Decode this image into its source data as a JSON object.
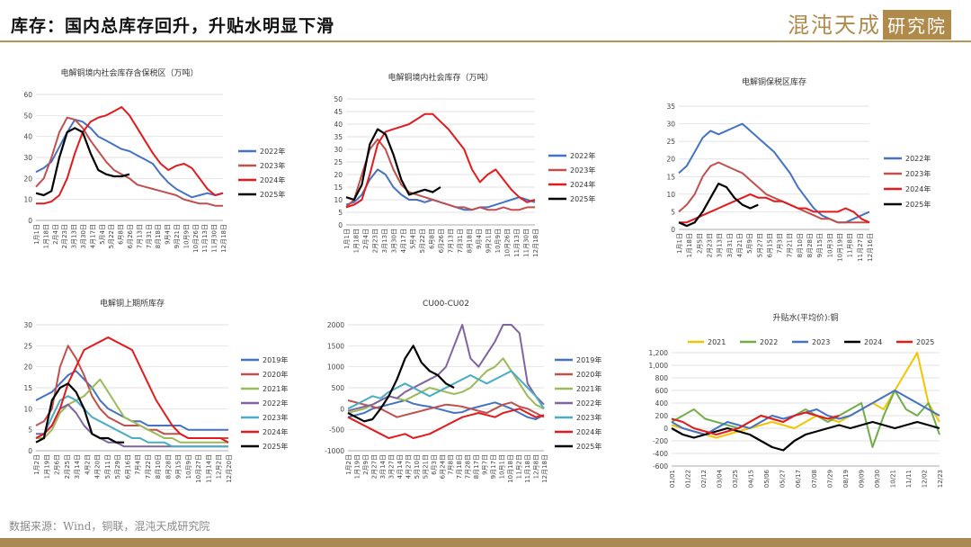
{
  "page": {
    "title": "库存：国内总库存回升，升贴水明显下滑",
    "logo_text": "混沌天成",
    "logo_box": "研究院",
    "source": "数据来源：Wind，铜联，混沌天成研究院"
  },
  "colors": {
    "c2019": "#4472c4",
    "c2020": "#c0504d",
    "c2021": "#9bbb59",
    "c2022": "#8064a2",
    "c2023": "#4bacc6",
    "c2024": "#e31a1c",
    "c2025": "#000000"
  },
  "chart_data": [
    {
      "id": "c1",
      "type": "line",
      "title": "电解铜境内社会库存含保税区（万吨）",
      "ylim": [
        0,
        60
      ],
      "yticks": [
        0,
        10,
        20,
        30,
        40,
        50,
        60
      ],
      "xlabels": [
        "1月1日",
        "1月18日",
        "2月4日",
        "2月23日",
        "3月13日",
        "3月30日",
        "4月17日",
        "5月4日",
        "5月22日",
        "6月8日",
        "6月26日",
        "7月13日",
        "7月31日",
        "8月18日",
        "9月4日",
        "9月21日",
        "10月9日",
        "10月26日",
        "11月13日",
        "11月30日",
        "12月18日"
      ],
      "series": [
        {
          "name": "2022年",
          "color": "#4472c4",
          "values": [
            23,
            25,
            28,
            35,
            42,
            48,
            47,
            44,
            40,
            38,
            36,
            34,
            33,
            31,
            29,
            27,
            22,
            18,
            15,
            13,
            11,
            12,
            13,
            12,
            13
          ]
        },
        {
          "name": "2023年",
          "color": "#c0504d",
          "values": [
            16,
            20,
            30,
            42,
            49,
            48,
            44,
            38,
            33,
            28,
            24,
            22,
            20,
            17,
            16,
            15,
            14,
            13,
            12,
            10,
            9,
            8,
            8,
            7,
            7
          ]
        },
        {
          "name": "2024年",
          "color": "#e31a1c",
          "values": [
            8,
            8,
            9,
            12,
            20,
            32,
            42,
            47,
            49,
            50,
            52,
            54,
            50,
            44,
            38,
            32,
            27,
            24,
            26,
            27,
            25,
            20,
            15,
            12,
            13
          ]
        },
        {
          "name": "2025年",
          "color": "#000000",
          "values": [
            13,
            12,
            14,
            30,
            42,
            44,
            42,
            32,
            24,
            22,
            21,
            21,
            22
          ]
        }
      ]
    },
    {
      "id": "c2",
      "type": "line",
      "title": "电解铜境内社会库存（万吨）",
      "ylim": [
        0,
        50
      ],
      "yticks": [
        0,
        5,
        10,
        15,
        20,
        25,
        30,
        35,
        40,
        45,
        50
      ],
      "xlabels": [
        "1月1日",
        "1月18日",
        "2月4日",
        "2月23日",
        "3月13日",
        "3月30日",
        "4月17日",
        "5月4日",
        "5月22日",
        "6月8日",
        "6月26日",
        "7月13日",
        "7月31日",
        "8月18日",
        "9月4日",
        "9月21日",
        "10月9日",
        "10月26日",
        "11月13日",
        "11月30日",
        "12月18日"
      ],
      "series": [
        {
          "name": "2022年",
          "color": "#4472c4",
          "values": [
            8,
            9,
            12,
            18,
            22,
            20,
            15,
            12,
            10,
            10,
            9,
            10,
            9,
            8,
            7,
            6,
            6,
            7,
            7,
            8,
            9,
            10,
            11,
            10,
            9
          ]
        },
        {
          "name": "2023年",
          "color": "#c0504d",
          "values": [
            7,
            10,
            20,
            30,
            34,
            30,
            22,
            16,
            13,
            12,
            11,
            10,
            9,
            8,
            7,
            7,
            6,
            7,
            6,
            6,
            7,
            6,
            6,
            7,
            7
          ]
        },
        {
          "name": "2024年",
          "color": "#e31a1c",
          "values": [
            7,
            8,
            10,
            20,
            32,
            37,
            38,
            39,
            40,
            42,
            44,
            44,
            41,
            38,
            34,
            30,
            22,
            17,
            20,
            22,
            18,
            14,
            11,
            9,
            10
          ]
        },
        {
          "name": "2025年",
          "color": "#000000",
          "values": [
            11,
            10,
            16,
            32,
            38,
            36,
            28,
            18,
            12,
            13,
            14,
            13,
            15
          ]
        }
      ]
    },
    {
      "id": "c3",
      "type": "line",
      "title": "电解铜保税区库存",
      "ylim": [
        0,
        35
      ],
      "yticks": [
        0,
        5,
        10,
        15,
        20,
        25,
        30,
        35
      ],
      "xlabels": [
        "1月1日",
        "1月18日",
        "2月5日",
        "2月23日",
        "3月13日",
        "3月31日",
        "4月21日",
        "5月9日",
        "5月27日",
        "6月15日",
        "7月3日",
        "7月21日",
        "8月10日",
        "8月28日",
        "9月15日",
        "10月3日",
        "10月19日",
        "11月8日",
        "11月27日",
        "12月16日"
      ],
      "series": [
        {
          "name": "2022年",
          "color": "#4472c4",
          "values": [
            16,
            18,
            22,
            26,
            28,
            27,
            28,
            29,
            30,
            28,
            26,
            24,
            22,
            19,
            16,
            12,
            9,
            6,
            4,
            3,
            2,
            2,
            3,
            4,
            5
          ]
        },
        {
          "name": "2023年",
          "color": "#c0504d",
          "values": [
            5,
            7,
            10,
            15,
            18,
            19,
            18,
            17,
            16,
            14,
            12,
            10,
            9,
            8,
            7,
            6,
            5,
            4,
            3,
            3,
            2,
            2,
            2,
            2,
            2
          ]
        },
        {
          "name": "2024年",
          "color": "#e31a1c",
          "values": [
            2,
            2,
            3,
            4,
            5,
            6,
            7,
            8,
            9,
            10,
            9,
            9,
            8,
            8,
            7,
            6,
            6,
            5,
            5,
            5,
            5,
            6,
            5,
            3,
            2
          ]
        },
        {
          "name": "2025年",
          "color": "#000000",
          "values": [
            2,
            1,
            2,
            5,
            9,
            13,
            12,
            9,
            7,
            6,
            7
          ]
        }
      ]
    },
    {
      "id": "c4",
      "type": "line",
      "title": "电解铜上期所库存",
      "ylim": [
        0,
        30
      ],
      "yticks": [
        0,
        5,
        10,
        15,
        20,
        25,
        30
      ],
      "xlabels": [
        "1月2日",
        "1月19日",
        "2月6日",
        "2月25日",
        "3月14日",
        "4月2日",
        "4月20日",
        "5月11日",
        "5月29日",
        "6月16日",
        "7月4日",
        "7月22日",
        "8月10日",
        "8月28日",
        "9月15日",
        "10月9日",
        "10月27日",
        "11月14日",
        "12月2日",
        "12月20日"
      ],
      "series": [
        {
          "name": "2019年",
          "color": "#4472c4",
          "values": [
            12,
            13,
            14,
            16,
            18,
            19,
            17,
            15,
            12,
            10,
            9,
            8,
            7,
            7,
            6,
            6,
            6,
            6,
            6,
            5,
            5,
            5,
            5,
            5,
            5
          ]
        },
        {
          "name": "2020年",
          "color": "#c0504d",
          "values": [
            6,
            7,
            10,
            20,
            25,
            22,
            18,
            13,
            10,
            8,
            7,
            6,
            6,
            6,
            5,
            5,
            4,
            4,
            4,
            3,
            3,
            3,
            3,
            3,
            3
          ]
        },
        {
          "name": "2021年",
          "color": "#9bbb59",
          "values": [
            3,
            3,
            5,
            9,
            11,
            12,
            13,
            15,
            17,
            14,
            11,
            8,
            7,
            6,
            5,
            4,
            3,
            3,
            2,
            2,
            2,
            2,
            2,
            2,
            2
          ]
        },
        {
          "name": "2022年",
          "color": "#8064a2",
          "values": [
            4,
            4,
            6,
            10,
            11,
            9,
            6,
            4,
            3,
            2,
            2,
            1,
            1,
            1,
            1,
            1,
            1,
            1,
            1,
            1,
            1,
            1,
            1,
            1,
            1
          ]
        },
        {
          "name": "2023年",
          "color": "#4bacc6",
          "values": [
            3,
            4,
            8,
            12,
            13,
            12,
            10,
            8,
            7,
            6,
            5,
            4,
            3,
            3,
            2,
            2,
            2,
            1,
            1,
            1,
            1,
            1,
            1,
            1,
            1
          ]
        },
        {
          "name": "2024年",
          "color": "#e31a1c",
          "values": [
            3,
            4,
            6,
            10,
            16,
            20,
            24,
            25,
            26,
            27,
            26,
            25,
            24,
            20,
            16,
            12,
            9,
            6,
            4,
            3,
            3,
            3,
            3,
            3,
            2
          ]
        },
        {
          "name": "2025年",
          "color": "#000000",
          "values": [
            2,
            3,
            12,
            15,
            16,
            14,
            10,
            4,
            3,
            3,
            2,
            2
          ]
        }
      ]
    },
    {
      "id": "c5",
      "type": "line",
      "title": "CU00-CU02",
      "ylim": [
        -1000,
        2000
      ],
      "yticks": [
        -1000,
        -500,
        0,
        500,
        1000,
        1500,
        2000
      ],
      "xlabels": [
        "1月2日",
        "1月19日",
        "2月9日",
        "2月27日",
        "3月14日",
        "3月27日",
        "4月14日",
        "4月27日",
        "5月10日",
        "5月21日",
        "6月3日",
        "6月24日",
        "7月8日",
        "7月18日",
        "7月28日",
        "8月17日",
        "9月7日",
        "9月17日",
        "10月1日",
        "10月18日",
        "11月2日",
        "11月18日",
        "12月8日",
        "12月18日"
      ],
      "series": [
        {
          "name": "2019年",
          "color": "#4472c4",
          "values": [
            -200,
            -150,
            -100,
            0,
            50,
            100,
            150,
            200,
            120,
            80,
            50,
            0,
            -50,
            -100,
            -80,
            0,
            50,
            100,
            150,
            80,
            0,
            -100,
            -200,
            -250,
            -150
          ]
        },
        {
          "name": "2020年",
          "color": "#c0504d",
          "values": [
            200,
            150,
            100,
            50,
            0,
            -100,
            -200,
            -150,
            -100,
            -50,
            0,
            50,
            100,
            80,
            50,
            0,
            -50,
            -100,
            0,
            100,
            150,
            50,
            0,
            -100,
            -200
          ]
        },
        {
          "name": "2021年",
          "color": "#9bbb59",
          "values": [
            -100,
            -50,
            0,
            100,
            200,
            300,
            250,
            200,
            300,
            400,
            500,
            450,
            400,
            350,
            400,
            500,
            700,
            900,
            1000,
            1200,
            900,
            600,
            300,
            100,
            0
          ]
        },
        {
          "name": "2022年",
          "color": "#8064a2",
          "values": [
            -50,
            0,
            50,
            100,
            200,
            300,
            250,
            400,
            500,
            600,
            700,
            800,
            1000,
            1500,
            2000,
            1200,
            1000,
            1300,
            1600,
            2000,
            2000,
            1800,
            600,
            300,
            100
          ]
        },
        {
          "name": "2023年",
          "color": "#4bacc6",
          "values": [
            0,
            100,
            200,
            300,
            250,
            400,
            500,
            600,
            500,
            400,
            300,
            400,
            500,
            600,
            700,
            800,
            700,
            600,
            700,
            800,
            900,
            700,
            500,
            300,
            0
          ]
        },
        {
          "name": "2024年",
          "color": "#e31a1c",
          "values": [
            -200,
            -300,
            -400,
            -500,
            -600,
            -700,
            -650,
            -600,
            -700,
            -650,
            -600,
            -500,
            -400,
            -300,
            -200,
            -150,
            -100,
            -150,
            -200,
            -100,
            -50,
            0,
            -100,
            -200,
            -150
          ]
        },
        {
          "name": "2025年",
          "color": "#000000",
          "values": [
            -100,
            -200,
            -300,
            -250,
            0,
            300,
            700,
            1200,
            1500,
            1100,
            900,
            800,
            600,
            500
          ]
        }
      ]
    },
    {
      "id": "c6",
      "type": "line",
      "title": "升贴水(平均价):铜",
      "ylim": [
        -600,
        1200
      ],
      "yticks": [
        -600,
        -400,
        -200,
        0,
        200,
        400,
        600,
        800,
        1000,
        1200
      ],
      "ytick_labels": [
        "-600",
        "-400",
        "-200",
        "0",
        "200",
        "400",
        "600",
        "800",
        "1,000",
        "1,200"
      ],
      "xlabels": [
        "01/01",
        "01/22",
        "02/12",
        "03/04",
        "03/25",
        "04/15",
        "05/06",
        "05/27",
        "06/17",
        "07/08",
        "07/29",
        "08/19",
        "09/09",
        "09/30",
        "10/21",
        "11/11",
        "12/02",
        "12/23"
      ],
      "legend": [
        "2021",
        "2022",
        "2023",
        "2024",
        "2025"
      ],
      "series": [
        {
          "name": "2021",
          "color": "#f5c400",
          "values": [
            50,
            0,
            -50,
            -100,
            -150,
            -100,
            -50,
            0,
            50,
            100,
            50,
            0,
            100,
            200,
            150,
            100,
            200,
            300,
            400,
            300,
            600,
            900,
            1200,
            400,
            100
          ]
        },
        {
          "name": "2022",
          "color": "#70ad47",
          "values": [
            100,
            200,
            300,
            150,
            100,
            50,
            0,
            100,
            200,
            150,
            100,
            200,
            300,
            200,
            100,
            200,
            300,
            400,
            -300,
            200,
            600,
            300,
            200,
            400,
            -100
          ]
        },
        {
          "name": "2023",
          "color": "#4472c4",
          "values": [
            100,
            0,
            -50,
            -100,
            0,
            100,
            50,
            0,
            100,
            200,
            150,
            200,
            250,
            300,
            200,
            150,
            200,
            300,
            400,
            500,
            600,
            500,
            400,
            300,
            200
          ]
        },
        {
          "name": "2024",
          "color": "#000000",
          "values": [
            0,
            -100,
            -150,
            -100,
            -50,
            0,
            -50,
            -100,
            -200,
            -300,
            -350,
            -200,
            -100,
            -50,
            0,
            50,
            0,
            50,
            100,
            50,
            0,
            50,
            100,
            50,
            0
          ]
        },
        {
          "name": "2025",
          "color": "#e31a1c",
          "values": [
            150,
            100,
            0,
            -50,
            -100,
            -50,
            0,
            100,
            200,
            150,
            100,
            200,
            250,
            200,
            150,
            200
          ]
        }
      ]
    }
  ]
}
